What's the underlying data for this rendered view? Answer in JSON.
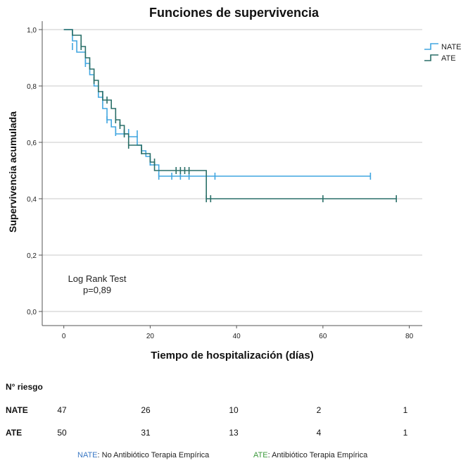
{
  "chart_data": {
    "type": "line",
    "title": "Funciones de supervivencia",
    "xlabel": "Tiempo de hospitalización (días)",
    "ylabel": "Supervivencia acumulada",
    "xlim": [
      -5,
      83
    ],
    "ylim": [
      -0.05,
      1.03
    ],
    "xticks": [
      0,
      20,
      40,
      60,
      80
    ],
    "yticks": [
      0.0,
      0.2,
      0.4,
      0.6,
      0.8,
      1.0
    ],
    "xtick_labels": [
      "0",
      "20",
      "40",
      "60",
      "80"
    ],
    "ytick_labels": [
      "0,0",
      "0,2",
      "0,4",
      "0,6",
      "0,8",
      "1,0"
    ],
    "grid": "horizontal",
    "legend_position": "top-right",
    "series": [
      {
        "name": "NATE",
        "color": "#41a6e0",
        "steps": [
          [
            0,
            1.0
          ],
          [
            2,
            0.96
          ],
          [
            3,
            0.92
          ],
          [
            5,
            0.88
          ],
          [
            6,
            0.84
          ],
          [
            7,
            0.8
          ],
          [
            8,
            0.76
          ],
          [
            9,
            0.72
          ],
          [
            10,
            0.68
          ],
          [
            11,
            0.655
          ],
          [
            12,
            0.63
          ],
          [
            15,
            0.62
          ],
          [
            17,
            0.59
          ],
          [
            18,
            0.57
          ],
          [
            19,
            0.55
          ],
          [
            20,
            0.52
          ],
          [
            22,
            0.48
          ],
          [
            71,
            0.48
          ]
        ],
        "censored": [
          [
            2,
            0.94
          ],
          [
            5,
            0.88
          ],
          [
            9,
            0.77
          ],
          [
            10,
            0.68
          ],
          [
            12,
            0.635
          ],
          [
            14,
            0.635
          ],
          [
            15,
            0.635
          ],
          [
            17,
            0.63
          ],
          [
            20,
            0.53
          ],
          [
            22,
            0.48
          ],
          [
            25,
            0.48
          ],
          [
            27,
            0.48
          ],
          [
            29,
            0.48
          ],
          [
            35,
            0.48
          ],
          [
            71,
            0.48
          ]
        ]
      },
      {
        "name": "ATE",
        "color": "#2a6f68",
        "steps": [
          [
            0,
            1.0
          ],
          [
            2,
            0.98
          ],
          [
            4,
            0.94
          ],
          [
            5,
            0.9
          ],
          [
            6,
            0.86
          ],
          [
            7,
            0.82
          ],
          [
            8,
            0.78
          ],
          [
            9,
            0.75
          ],
          [
            11,
            0.72
          ],
          [
            12,
            0.68
          ],
          [
            13,
            0.66
          ],
          [
            14,
            0.63
          ],
          [
            15,
            0.59
          ],
          [
            17,
            0.59
          ],
          [
            18,
            0.56
          ],
          [
            20,
            0.53
          ],
          [
            21,
            0.5
          ],
          [
            33,
            0.4
          ],
          [
            77,
            0.4
          ]
        ],
        "censored": [
          [
            4,
            0.94
          ],
          [
            7,
            0.82
          ],
          [
            10,
            0.75
          ],
          [
            12,
            0.68
          ],
          [
            13,
            0.66
          ],
          [
            14,
            0.63
          ],
          [
            15,
            0.59
          ],
          [
            18,
            0.57
          ],
          [
            21,
            0.53
          ],
          [
            26,
            0.5
          ],
          [
            27,
            0.5
          ],
          [
            28,
            0.5
          ],
          [
            29,
            0.5
          ],
          [
            33,
            0.4
          ],
          [
            34,
            0.4
          ],
          [
            60,
            0.4
          ],
          [
            77,
            0.4
          ]
        ]
      }
    ],
    "annotation": [
      "Log Rank Test",
      "p=0,89"
    ]
  },
  "risk_table": {
    "header": "N° riesgo",
    "rows": [
      {
        "label": "NATE",
        "values": [
          "47",
          "26",
          "10",
          "2",
          "1"
        ]
      },
      {
        "label": "ATE",
        "values": [
          "50",
          "31",
          "13",
          "4",
          "1"
        ]
      }
    ]
  },
  "footnote": {
    "nate_abbr": "NATE",
    "nate_text": ": No Antibiótico Terapia Empírica",
    "ate_abbr": "ATE",
    "ate_text": ": Antibiótico Terapia Empírica",
    "nate_color": "#3b78c4",
    "ate_color": "#3d9a3d"
  }
}
